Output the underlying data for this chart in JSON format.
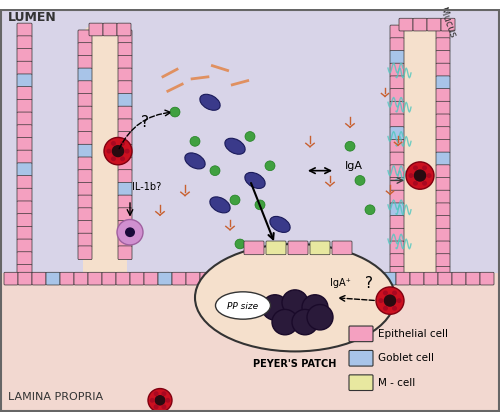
{
  "bg_top": "#d8d4e8",
  "bg_bottom": "#f2d8d0",
  "epithelial_color": "#f4a0c0",
  "goblet_color": "#a8c4e8",
  "m_cell_color": "#e8e8a0",
  "villus_outline": "#333333",
  "lumen_text": "LUMEN",
  "lamina_text": "LAMINA PROPRIA",
  "mucus_text": "Mucus",
  "iga_text": "IgA",
  "peyers_text": "PEYER'S PATCH",
  "pp_size_text": "PP size",
  "iga_plus_text": "IgA⁺",
  "il1b_text": "IL-1b?",
  "legend_items": [
    "Epithelial cell",
    "Goblet cell",
    "M - cell"
  ],
  "legend_colors": [
    "#f4a0c0",
    "#a8c4e8",
    "#e8e8a0"
  ]
}
